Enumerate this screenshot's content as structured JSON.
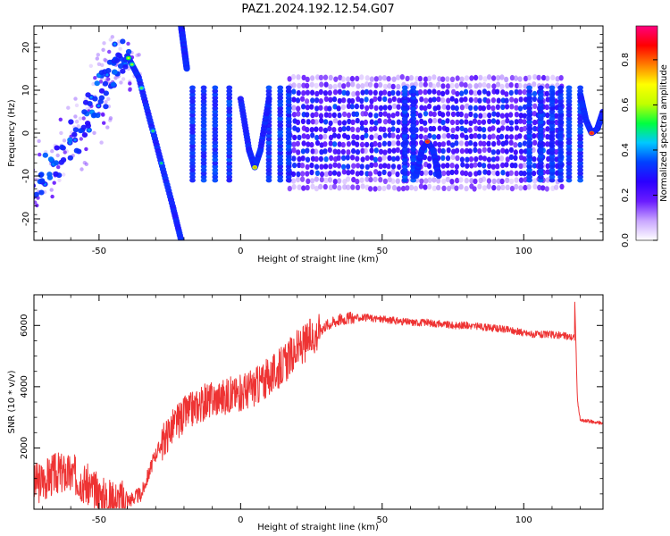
{
  "figure": {
    "title": "PAZ1.2024.192.12.54.G07"
  },
  "chart_data": [
    {
      "type": "heatmap",
      "xlabel": "Height of straight line (km)",
      "ylabel": "Frequency (Hz)",
      "xlim": [
        -73,
        128
      ],
      "ylim": [
        -25,
        25
      ],
      "xticks": [
        -50,
        0,
        50,
        100
      ],
      "yticks": [
        -20,
        -10,
        0,
        10,
        20
      ],
      "colorbar": {
        "label": "Normalized spectral amplitude",
        "range": [
          0,
          0.95
        ],
        "ticks": [
          0.0,
          0.2,
          0.4,
          0.6,
          0.8
        ],
        "tick_labels": [
          "0.0",
          "0.2",
          "0.4",
          "0.6",
          "0.8"
        ],
        "colormap": [
          "#ffffff",
          "#c9a6ff",
          "#6a1cff",
          "#2b00ff",
          "#0040ff",
          "#00c8ff",
          "#00ff40",
          "#c0ff00",
          "#ffff00",
          "#ff7f00",
          "#ff0000",
          "#ff007f"
        ]
      },
      "features": [
        {
          "name": "rising scattered branch",
          "x": [
            -72,
            -62,
            -52,
            -45,
            -41
          ],
          "y": [
            -13,
            -5,
            6,
            14,
            19
          ]
        },
        {
          "name": "main descending branch",
          "x": [
            -40,
            -36,
            -32,
            -28,
            -24,
            -21
          ],
          "y": [
            18,
            13,
            3,
            -7,
            -17,
            -25
          ]
        },
        {
          "name": "upper descending streak",
          "x": [
            -21,
            -20,
            -19
          ],
          "y": [
            25,
            20,
            15
          ]
        },
        {
          "name": "v-shaped trace near 5 km",
          "x": [
            0,
            3,
            5,
            7,
            10
          ],
          "y": [
            8,
            -4,
            -8,
            -4,
            8
          ]
        },
        {
          "name": "inverted-v trace near 66 km",
          "x": [
            62,
            64,
            66,
            68,
            70
          ],
          "y": [
            -10,
            -4,
            -2,
            -4,
            -10
          ]
        },
        {
          "name": "v-shaped trace near 124 km",
          "x": [
            120,
            122,
            124,
            126,
            128
          ],
          "y": [
            9,
            3,
            0,
            1,
            5
          ]
        }
      ],
      "vertical_band_centers": [
        -17,
        -13,
        -9,
        -4,
        10,
        14,
        17,
        58,
        61,
        102,
        106,
        110,
        113,
        116,
        120
      ],
      "interference_region": {
        "x_range": [
          17,
          113
        ],
        "y_range": [
          -13,
          13
        ]
      }
    },
    {
      "type": "line",
      "xlabel": "Height of straight line (km)",
      "ylabel": "SNR (10 * v/v)",
      "xlim": [
        -73,
        128
      ],
      "ylim": [
        0,
        7000
      ],
      "xticks": [
        -50,
        0,
        50,
        100
      ],
      "yticks": [
        2000,
        4000,
        6000
      ],
      "color": "#ee3333",
      "series": [
        {
          "x": [
            -73,
            -65,
            -58,
            -50,
            -45,
            -40,
            -35,
            -30,
            -25,
            -20,
            -15,
            -10,
            -5,
            0,
            5,
            10,
            15,
            20,
            25,
            30,
            35,
            40,
            45,
            50,
            55,
            60,
            65,
            70,
            75,
            80,
            85,
            90,
            95,
            100,
            105,
            110,
            115,
            118,
            119,
            120,
            125,
            128
          ],
          "y": [
            800,
            1200,
            1100,
            450,
            300,
            280,
            500,
            1800,
            2600,
            3100,
            3400,
            3600,
            3700,
            3800,
            4000,
            4300,
            4700,
            5200,
            5600,
            6000,
            6200,
            6250,
            6250,
            6200,
            6150,
            6100,
            6100,
            6050,
            6000,
            6000,
            5950,
            5900,
            5850,
            5750,
            5700,
            5700,
            5650,
            5600,
            3500,
            2900,
            2850,
            2800
          ]
        }
      ]
    }
  ]
}
